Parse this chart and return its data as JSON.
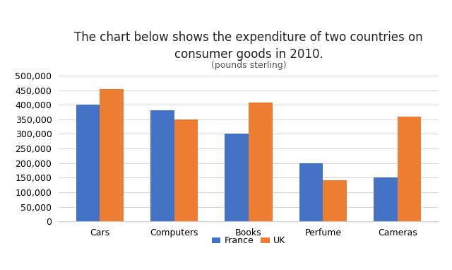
{
  "title_line1": "The chart below shows the expenditure of two countries on\nconsumer goods in 2010.",
  "subtitle": "(pounds sterling)",
  "categories": [
    "Cars",
    "Computers",
    "Books",
    "Perfume",
    "Cameras"
  ],
  "france": [
    400000,
    380000,
    300000,
    200000,
    150000
  ],
  "uk": [
    455000,
    350000,
    408000,
    140000,
    360000
  ],
  "france_color": "#4472C4",
  "uk_color": "#ED7D31",
  "ylim": [
    0,
    500000
  ],
  "yticks": [
    0,
    50000,
    100000,
    150000,
    200000,
    250000,
    300000,
    350000,
    400000,
    450000,
    500000
  ],
  "legend_labels": [
    "France",
    "UK"
  ],
  "background_color": "#ffffff",
  "grid_color": "#d9d9d9",
  "title_fontsize": 12,
  "subtitle_fontsize": 9,
  "tick_fontsize": 9,
  "bar_width": 0.32
}
